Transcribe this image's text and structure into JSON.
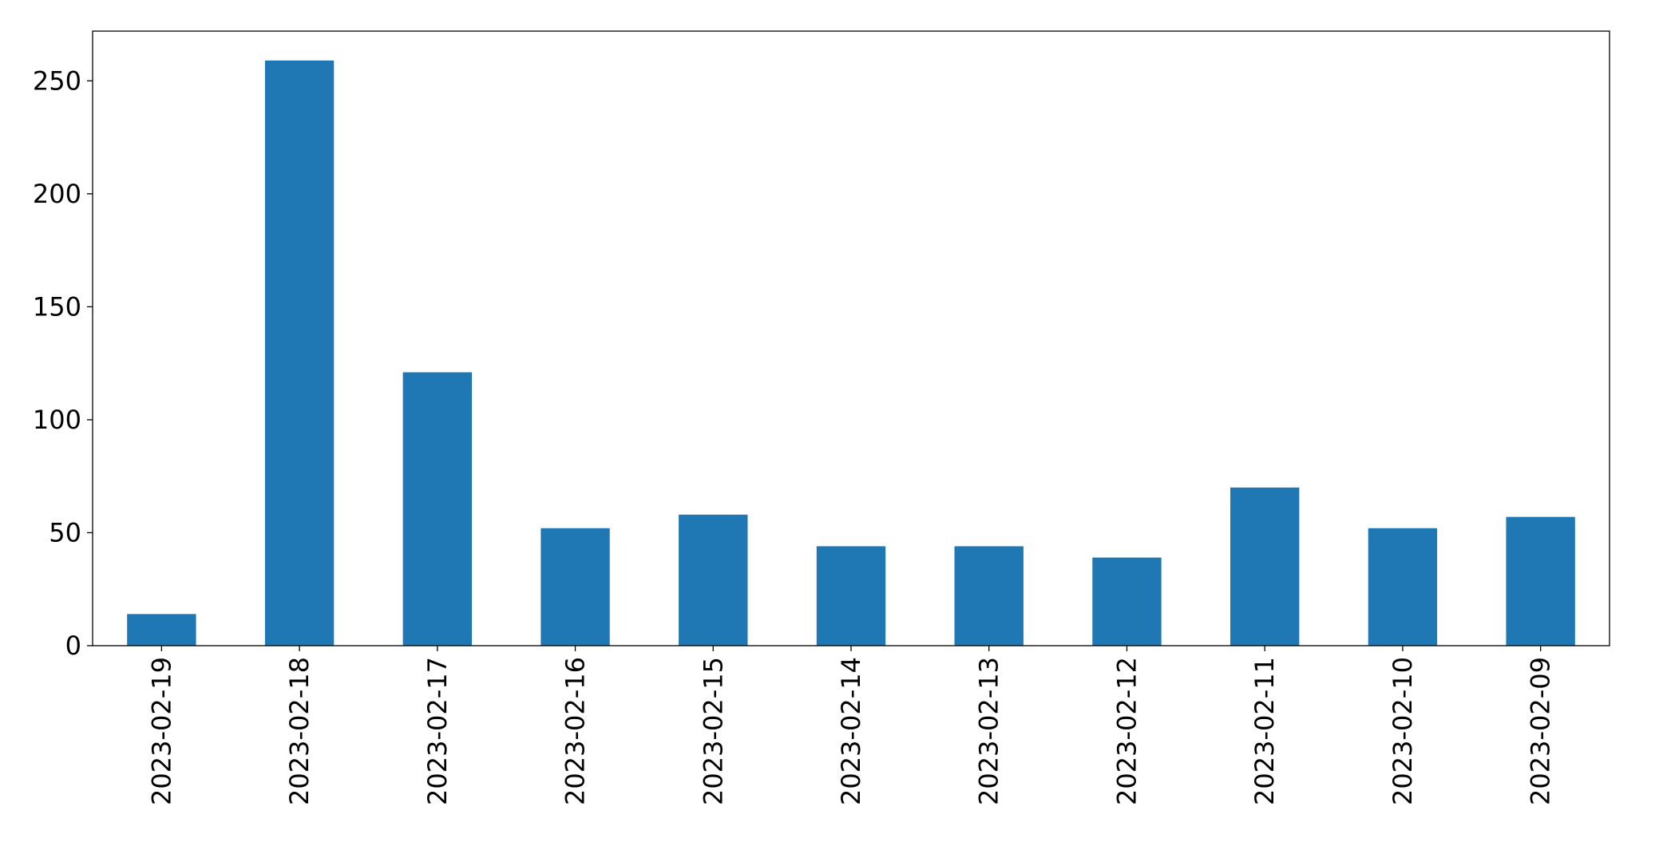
{
  "chart_data": {
    "type": "bar",
    "categories": [
      "2023-02-19",
      "2023-02-18",
      "2023-02-17",
      "2023-02-16",
      "2023-02-15",
      "2023-02-14",
      "2023-02-13",
      "2023-02-12",
      "2023-02-11",
      "2023-02-10",
      "2023-02-09"
    ],
    "values": [
      14,
      259,
      121,
      52,
      58,
      44,
      44,
      39,
      70,
      52,
      57
    ],
    "color": "#1f77b4",
    "ylim": [
      0,
      272
    ],
    "yticks": [
      0,
      50,
      100,
      150,
      200,
      250
    ],
    "grid": false
  }
}
